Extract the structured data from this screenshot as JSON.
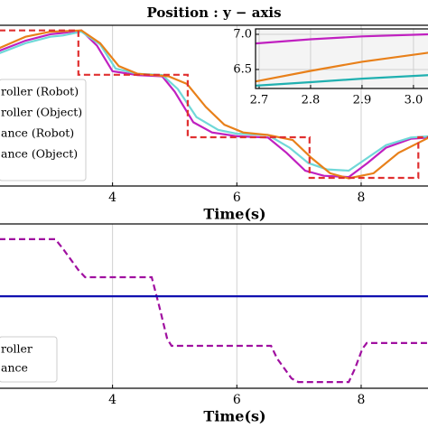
{
  "chart_data": [
    {
      "type": "line",
      "title": "Position : y − axis",
      "xlabel": "Time(s)",
      "xlim": [
        2.175,
        9.09
      ],
      "ylim": [
        0.9,
        7.2
      ],
      "xticks": [
        4,
        6,
        8
      ],
      "grid": true,
      "legend": "left",
      "series": [
        {
          "name": "roller (Robot)",
          "color": "#c020c0",
          "x": [
            2.175,
            2.6,
            3.0,
            3.2,
            3.5,
            3.75,
            4.0,
            4.4,
            4.8,
            5.0,
            5.3,
            5.6,
            6.0,
            6.5,
            6.8,
            7.1,
            7.4,
            7.8,
            8.1,
            8.4,
            8.8,
            9.09
          ],
          "values": [
            6.2,
            6.6,
            6.85,
            6.9,
            7.0,
            6.4,
            5.4,
            5.25,
            5.2,
            4.6,
            3.4,
            3.0,
            2.85,
            2.8,
            2.2,
            1.5,
            1.3,
            1.25,
            1.8,
            2.4,
            2.75,
            2.8
          ]
        },
        {
          "name": "roller (Object)",
          "color": "#70d8d8",
          "x": [
            2.175,
            2.6,
            3.0,
            3.2,
            3.5,
            3.8,
            4.05,
            4.4,
            4.8,
            5.05,
            5.35,
            5.7,
            6.0,
            6.5,
            6.85,
            7.15,
            7.45,
            7.8,
            8.1,
            8.4,
            8.8,
            9.09
          ],
          "values": [
            6.1,
            6.5,
            6.75,
            6.8,
            6.95,
            6.45,
            5.5,
            5.3,
            5.25,
            4.7,
            3.6,
            3.1,
            2.95,
            2.9,
            2.4,
            1.8,
            1.55,
            1.5,
            2.0,
            2.5,
            2.8,
            2.85
          ]
        },
        {
          "name": "ance (Robot)",
          "color": "#e8801a",
          "x": [
            2.175,
            2.6,
            3.0,
            3.5,
            3.8,
            4.1,
            4.4,
            4.9,
            5.2,
            5.5,
            5.8,
            6.1,
            6.5,
            6.9,
            7.2,
            7.5,
            7.8,
            8.2,
            8.6,
            9.09
          ],
          "values": [
            6.3,
            6.75,
            6.95,
            7.0,
            6.5,
            5.6,
            5.3,
            5.2,
            4.9,
            4.0,
            3.3,
            3.0,
            2.9,
            2.7,
            2.0,
            1.4,
            1.2,
            1.4,
            2.2,
            2.8
          ]
        },
        {
          "name": "ance (Object)",
          "color": "#e03030",
          "dashed": true,
          "x": [
            2.175,
            3.45,
            3.45,
            5.21,
            5.21,
            7.17,
            7.17,
            8.92,
            8.92,
            9.09
          ],
          "values": [
            7.0,
            7.0,
            5.26,
            5.26,
            2.81,
            2.81,
            1.22,
            1.22,
            2.81,
            2.81
          ]
        }
      ]
    },
    {
      "type": "line",
      "xlim": [
        2.693,
        3.03
      ],
      "ylim": [
        6.23,
        7.077
      ],
      "xticks": [
        2.7,
        2.8,
        2.9,
        {
          "value": 3,
          "label": "3.0"
        }
      ],
      "yticks": [
        {
          "value": 7,
          "label": "7.0"
        },
        6.5
      ],
      "grid": true,
      "series": [
        {
          "color": "#c020c0",
          "x": [
            2.693,
            2.8,
            2.9,
            3.03
          ],
          "values": [
            6.87,
            6.93,
            6.97,
            7.0
          ]
        },
        {
          "color": "#e8801a",
          "x": [
            2.693,
            2.8,
            2.9,
            3.03
          ],
          "values": [
            6.33,
            6.48,
            6.61,
            6.74
          ]
        },
        {
          "color": "#20b0b0",
          "x": [
            2.693,
            2.8,
            2.9,
            3.03
          ],
          "values": [
            6.27,
            6.32,
            6.37,
            6.42
          ]
        }
      ]
    },
    {
      "type": "line",
      "xlabel": "Time(s)",
      "xlim": [
        2.175,
        9.09
      ],
      "ylim": [
        0,
        1
      ],
      "xticks": [
        4,
        6,
        8
      ],
      "grid": true,
      "legend": "left",
      "series": [
        {
          "name": "roller",
          "color": "#a010a0",
          "dashed": true,
          "x": [
            2.175,
            3.08,
            3.2,
            3.45,
            3.56,
            4.63,
            4.75,
            4.88,
            4.95,
            6.55,
            6.65,
            6.88,
            6.99,
            7.8,
            7.9,
            8.02,
            8.09,
            9.09
          ],
          "values": [
            0.907,
            0.907,
            0.85,
            0.72,
            0.676,
            0.676,
            0.5,
            0.3,
            0.258,
            0.258,
            0.18,
            0.06,
            0.038,
            0.038,
            0.12,
            0.24,
            0.275,
            0.275
          ]
        },
        {
          "name": "ance",
          "color": "#1010b0",
          "x": [
            2.175,
            9.09
          ],
          "values": [
            0.56,
            0.56
          ]
        }
      ]
    }
  ]
}
